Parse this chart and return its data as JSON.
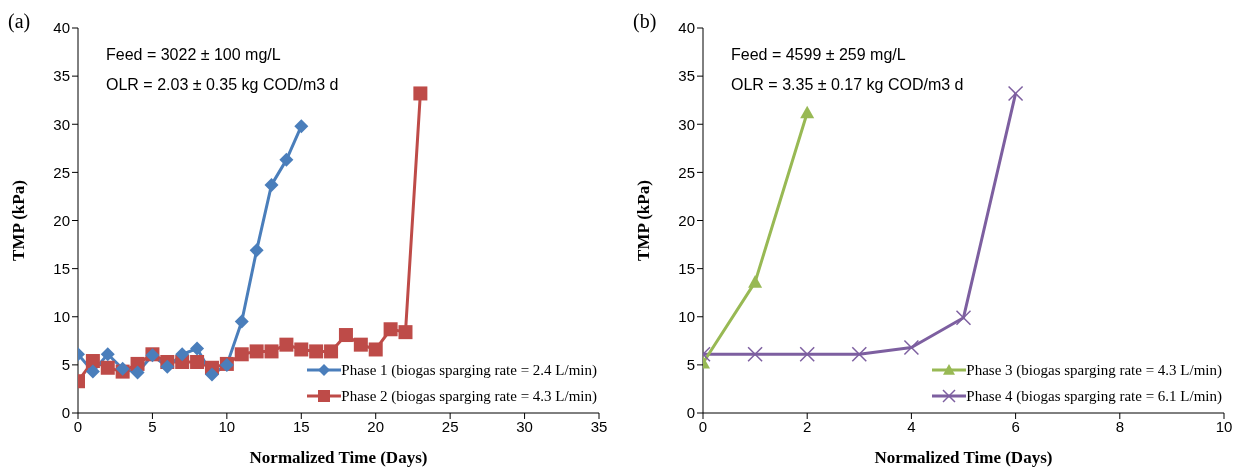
{
  "chart_data": [
    {
      "type": "line",
      "title": "(a)",
      "xlabel": "Normalized Time (Days)",
      "ylabel": "TMP (kPa)",
      "annotations": [
        "Feed  =  3022 ± 100 mg/L",
        "OLR =  2.03 ± 0.35 kg COD/m3 d"
      ],
      "xlim": [
        0,
        35
      ],
      "xticks": [
        0,
        5,
        10,
        15,
        20,
        25,
        30,
        35
      ],
      "ylim": [
        0,
        40
      ],
      "yticks": [
        0,
        5,
        10,
        15,
        20,
        25,
        30,
        35,
        40
      ],
      "grid": false,
      "legend": "bottom right",
      "series": [
        {
          "name": "Phase 1 (biogas sparging rate = 2.4 L/min)",
          "color": "#4a7ebb",
          "marker": "diamond",
          "x": [
            0,
            1,
            2,
            3,
            4,
            5,
            6,
            7,
            8,
            9,
            10,
            11,
            12,
            13,
            14,
            15
          ],
          "values": [
            6.1,
            4.3,
            6.1,
            4.6,
            4.2,
            6.0,
            4.8,
            6.1,
            6.7,
            4.0,
            5.0,
            9.5,
            16.9,
            23.7,
            26.3,
            29.8
          ]
        },
        {
          "name": "Phase 2 (biogas sparging rate = 4.3 L/min)",
          "color": "#be4b48",
          "marker": "square",
          "x": [
            0,
            1,
            2,
            3,
            4,
            5,
            6,
            7,
            8,
            9,
            10,
            11,
            12,
            13,
            14,
            15,
            16,
            17,
            18,
            19,
            20,
            21,
            22,
            23
          ],
          "values": [
            3.3,
            5.4,
            4.7,
            4.3,
            5.1,
            6.1,
            5.3,
            5.3,
            5.3,
            4.7,
            5.1,
            6.1,
            6.4,
            6.4,
            7.1,
            6.6,
            6.4,
            6.4,
            8.1,
            7.1,
            6.6,
            8.7,
            8.4,
            33.2
          ]
        }
      ]
    },
    {
      "type": "line",
      "title": "(b)",
      "xlabel": "Normalized Time (Days)",
      "ylabel": "TMP (kPa)",
      "annotations": [
        "Feed  =  4599 ± 259 mg/L",
        "OLR =  3.35 ± 0.17 kg COD/m3 d"
      ],
      "xlim": [
        0,
        10
      ],
      "xticks": [
        0,
        2,
        4,
        6,
        8,
        10
      ],
      "ylim": [
        0,
        40
      ],
      "yticks": [
        0,
        5,
        10,
        15,
        20,
        25,
        30,
        35,
        40
      ],
      "grid": false,
      "legend": "bottom right",
      "series": [
        {
          "name": "Phase 3 (biogas sparging rate = 4.3 L/min)",
          "color": "#98b954",
          "marker": "triangle",
          "x": [
            0,
            1,
            2
          ],
          "values": [
            5.2,
            13.6,
            31.2
          ]
        },
        {
          "name": "Phase 4 (biogas sparging rate = 6.1 L/min)",
          "color": "#7d5fa0",
          "marker": "cross",
          "x": [
            0,
            1,
            2,
            3,
            4,
            5,
            6
          ],
          "values": [
            6.1,
            6.1,
            6.1,
            6.1,
            6.8,
            9.9,
            33.2
          ]
        }
      ]
    }
  ]
}
